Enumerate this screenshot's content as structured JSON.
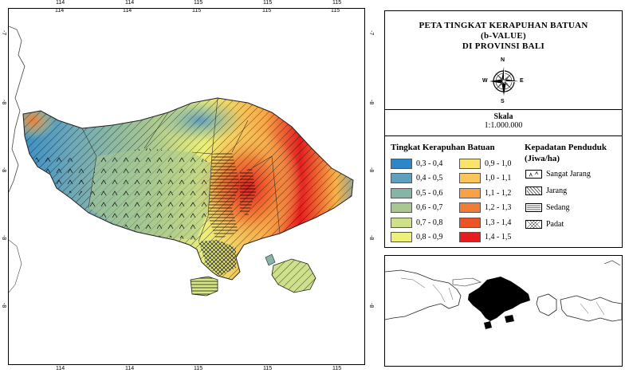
{
  "map": {
    "top_ticks": [
      "114",
      "114",
      "115",
      "115",
      "115"
    ],
    "bottom_ticks": [
      "114",
      "114",
      "115",
      "115",
      "115"
    ],
    "left_ticks": [
      "-7",
      "-8",
      "-8",
      "-8",
      "-8"
    ],
    "right_ticks": [
      "-7",
      "-8",
      "-8",
      "-8",
      "-8"
    ]
  },
  "title": {
    "line1": "PETA TINGKAT KERAPUHAN BATUAN",
    "line2": "(b-VALUE)",
    "line3": "DI PROVINSI BALI"
  },
  "compass": {
    "n": "N",
    "s": "S",
    "e": "E",
    "w": "W"
  },
  "scale": {
    "label": "Skala",
    "value": "1:1.000.000"
  },
  "legend_b": {
    "heading": "Tingkat Kerapuhan Batuan",
    "items": [
      {
        "label": "0,3 - 0,4",
        "color": "#2e86c8"
      },
      {
        "label": "0,4 - 0,5",
        "color": "#5f9fbf"
      },
      {
        "label": "0,5 - 0,6",
        "color": "#86b4a6"
      },
      {
        "label": "0,6 - 0,7",
        "color": "#a8c890"
      },
      {
        "label": "0,7 - 0,8",
        "color": "#cfe08a"
      },
      {
        "label": "0,8 - 0,9",
        "color": "#ecf07a"
      },
      {
        "label": "0,9 - 1,0",
        "color": "#fae36a"
      },
      {
        "label": "1,0 - 1,1",
        "color": "#fbc45a"
      },
      {
        "label": "1,1 - 1,2",
        "color": "#f7a247"
      },
      {
        "label": "1,2 - 1,3",
        "color": "#f27c35"
      },
      {
        "label": "1,3 - 1,4",
        "color": "#ec5428"
      },
      {
        "label": "1,4 - 1,5",
        "color": "#e41e1e"
      }
    ]
  },
  "legend_density": {
    "heading_line1": "Kepadatan Penduduk",
    "heading_line2": "(Jiwa/ha)",
    "items": [
      {
        "label": "Sangat Jarang",
        "pattern": "chevron"
      },
      {
        "label": "Jarang",
        "pattern": "diagonal"
      },
      {
        "label": "Sedang",
        "pattern": "horizontal"
      },
      {
        "label": "Padat",
        "pattern": "cross"
      }
    ]
  }
}
